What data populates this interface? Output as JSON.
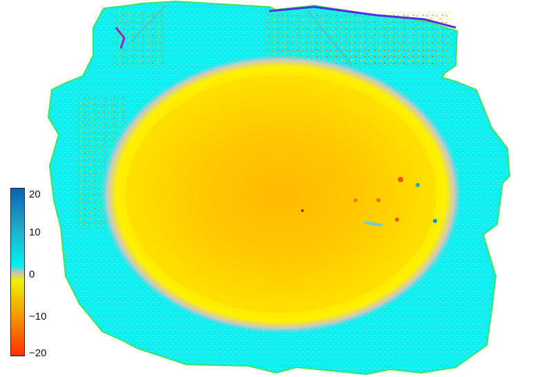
{
  "colorbar": {
    "tick_labels": [
      "20",
      "10",
      "0",
      "−10",
      "−20"
    ],
    "range": [
      -20,
      20
    ],
    "colors": {
      "max": "#1060b0",
      "high": "#20b0c8",
      "zero_pos": "#00f0f0",
      "zero": "#c0c0c0",
      "zero_neg": "#f0f000",
      "low": "#f0a000",
      "min": "#ff3000"
    }
  }
}
